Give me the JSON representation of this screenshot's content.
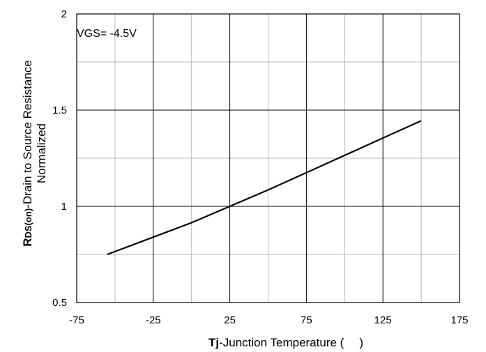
{
  "chart_data": {
    "type": "line",
    "annotation": "VGS= -4.5V",
    "xlabel": {
      "bold": "Tj",
      "text": "-Junction Temperature (",
      "close": ")"
    },
    "ylabel": {
      "bold_main": "R",
      "subscript": "DS(on)",
      "line1_rest": "-Drain to Source Resistance",
      "line2": "Normalized"
    },
    "xlim": [
      -75,
      175
    ],
    "ylim": [
      0.5,
      2
    ],
    "x_ticks": [
      "-75",
      "-25",
      "25",
      "75",
      "125",
      "175"
    ],
    "y_ticks": [
      "0.5",
      "1",
      "1.5",
      "2"
    ],
    "grid": true,
    "series": [
      {
        "color": "#000000",
        "x": [
          -55,
          -25,
          0,
          25,
          50,
          75,
          100,
          125,
          150
        ],
        "y": [
          0.75,
          0.84,
          0.915,
          1.0,
          1.085,
          1.175,
          1.265,
          1.355,
          1.445
        ]
      }
    ]
  }
}
